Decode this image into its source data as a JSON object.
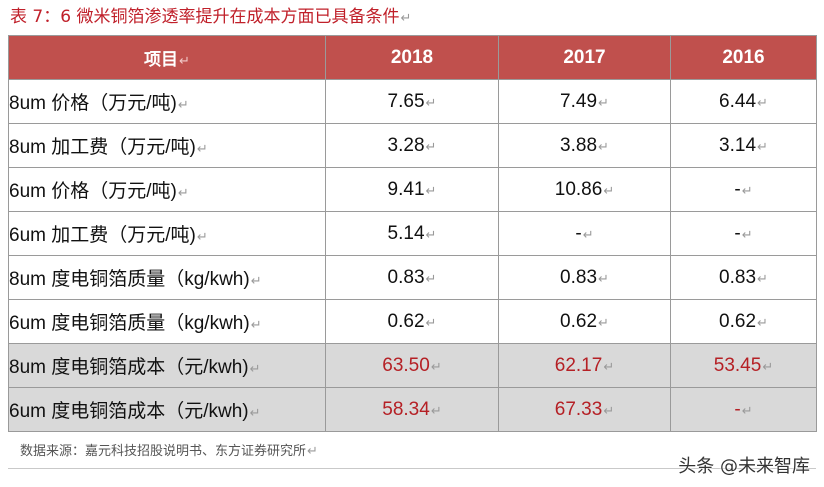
{
  "title": "表 7：6 微米铜箔渗透率提升在成本方面已具备条件",
  "para_mark": "↵",
  "table": {
    "headers": [
      "项目",
      "2018",
      "2017",
      "2016"
    ],
    "rows": [
      {
        "label": "8um 价格（万元/吨)",
        "v2018": "7.65",
        "v2017": "7.49",
        "v2016": "6.44",
        "shaded": false
      },
      {
        "label": "8um 加工费（万元/吨)",
        "v2018": "3.28",
        "v2017": "3.88",
        "v2016": "3.14",
        "shaded": false
      },
      {
        "label": "6um 价格（万元/吨)",
        "v2018": "9.41",
        "v2017": "10.86",
        "v2016": "-",
        "shaded": false
      },
      {
        "label": "6um 加工费（万元/吨)",
        "v2018": "5.14",
        "v2017": "-",
        "v2016": "-",
        "shaded": false
      },
      {
        "label": "8um 度电铜箔质量（kg/kwh)",
        "v2018": "0.83",
        "v2017": "0.83",
        "v2016": "0.83",
        "shaded": false
      },
      {
        "label": "6um 度电铜箔质量（kg/kwh)",
        "v2018": "0.62",
        "v2017": "0.62",
        "v2016": "0.62",
        "shaded": false
      },
      {
        "label": "8um 度电铜箔成本（元/kwh)",
        "v2018": "63.50",
        "v2017": "62.17",
        "v2016": "53.45",
        "shaded": true
      },
      {
        "label": "6um 度电铜箔成本（元/kwh)",
        "v2018": "58.34",
        "v2017": "67.33",
        "v2016": "-",
        "shaded": true
      }
    ]
  },
  "source": "数据来源：嘉元科技招股说明书、东方证券研究所",
  "watermark": "头条 @未来智库",
  "colors": {
    "header_bg": "#c0504d",
    "title_red": "#c0202a",
    "highlight_red": "#b52025",
    "shade_bg": "#d9d9d9"
  }
}
